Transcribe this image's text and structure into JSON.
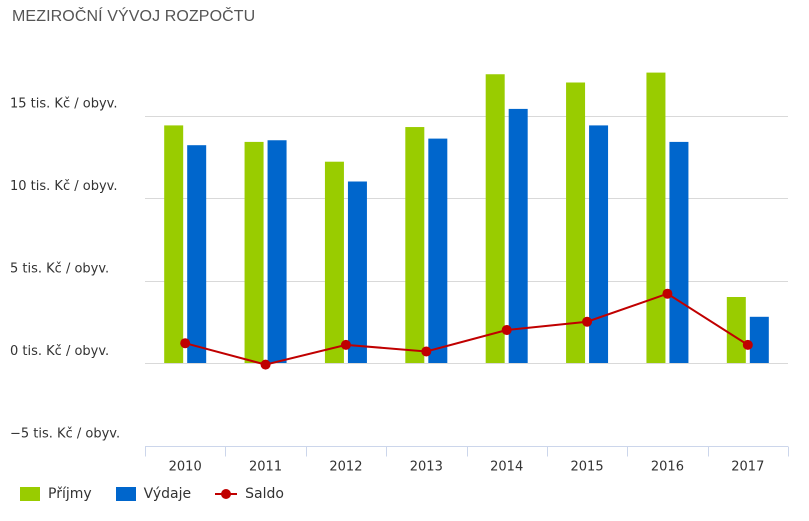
{
  "title": "MEZIROČNÍ VÝVOJ ROZPOČTU",
  "colors": {
    "prijmy": "#99cc00",
    "vydaje": "#0066cc",
    "saldo": "#c00000",
    "grid": "#d9d9d9",
    "axis": "#ccd6eb"
  },
  "chart_data": {
    "type": "bar",
    "title": "MEZIROČNÍ VÝVOJ ROZPOČTU",
    "categories": [
      "2010",
      "2011",
      "2012",
      "2013",
      "2014",
      "2015",
      "2016",
      "2017"
    ],
    "y_ticks": [
      {
        "value": 15,
        "label": "15 tis. Kč / obyv."
      },
      {
        "value": 10,
        "label": "10 tis. Kč / obyv."
      },
      {
        "value": 5,
        "label": "5 tis. Kč / obyv."
      },
      {
        "value": 0,
        "label": "0 tis. Kč / obyv."
      },
      {
        "value": -5,
        "label": "−5 tis. Kč / obyv."
      }
    ],
    "ylim": [
      -5,
      20
    ],
    "grid": true,
    "legend_position": "bottom-left",
    "series": [
      {
        "name": "Příjmy",
        "kind": "bar",
        "values": [
          14.4,
          13.4,
          12.2,
          14.3,
          17.5,
          17.0,
          17.6,
          4.0
        ]
      },
      {
        "name": "Výdaje",
        "kind": "bar",
        "values": [
          13.2,
          13.5,
          11.0,
          13.6,
          15.4,
          14.4,
          13.4,
          2.8
        ]
      },
      {
        "name": "Saldo",
        "kind": "line",
        "values": [
          1.2,
          -0.1,
          1.1,
          0.7,
          2.0,
          2.5,
          4.2,
          1.1
        ]
      }
    ]
  },
  "legend": {
    "prijmy": "Příjmy",
    "vydaje": "Výdaje",
    "saldo": "Saldo"
  }
}
